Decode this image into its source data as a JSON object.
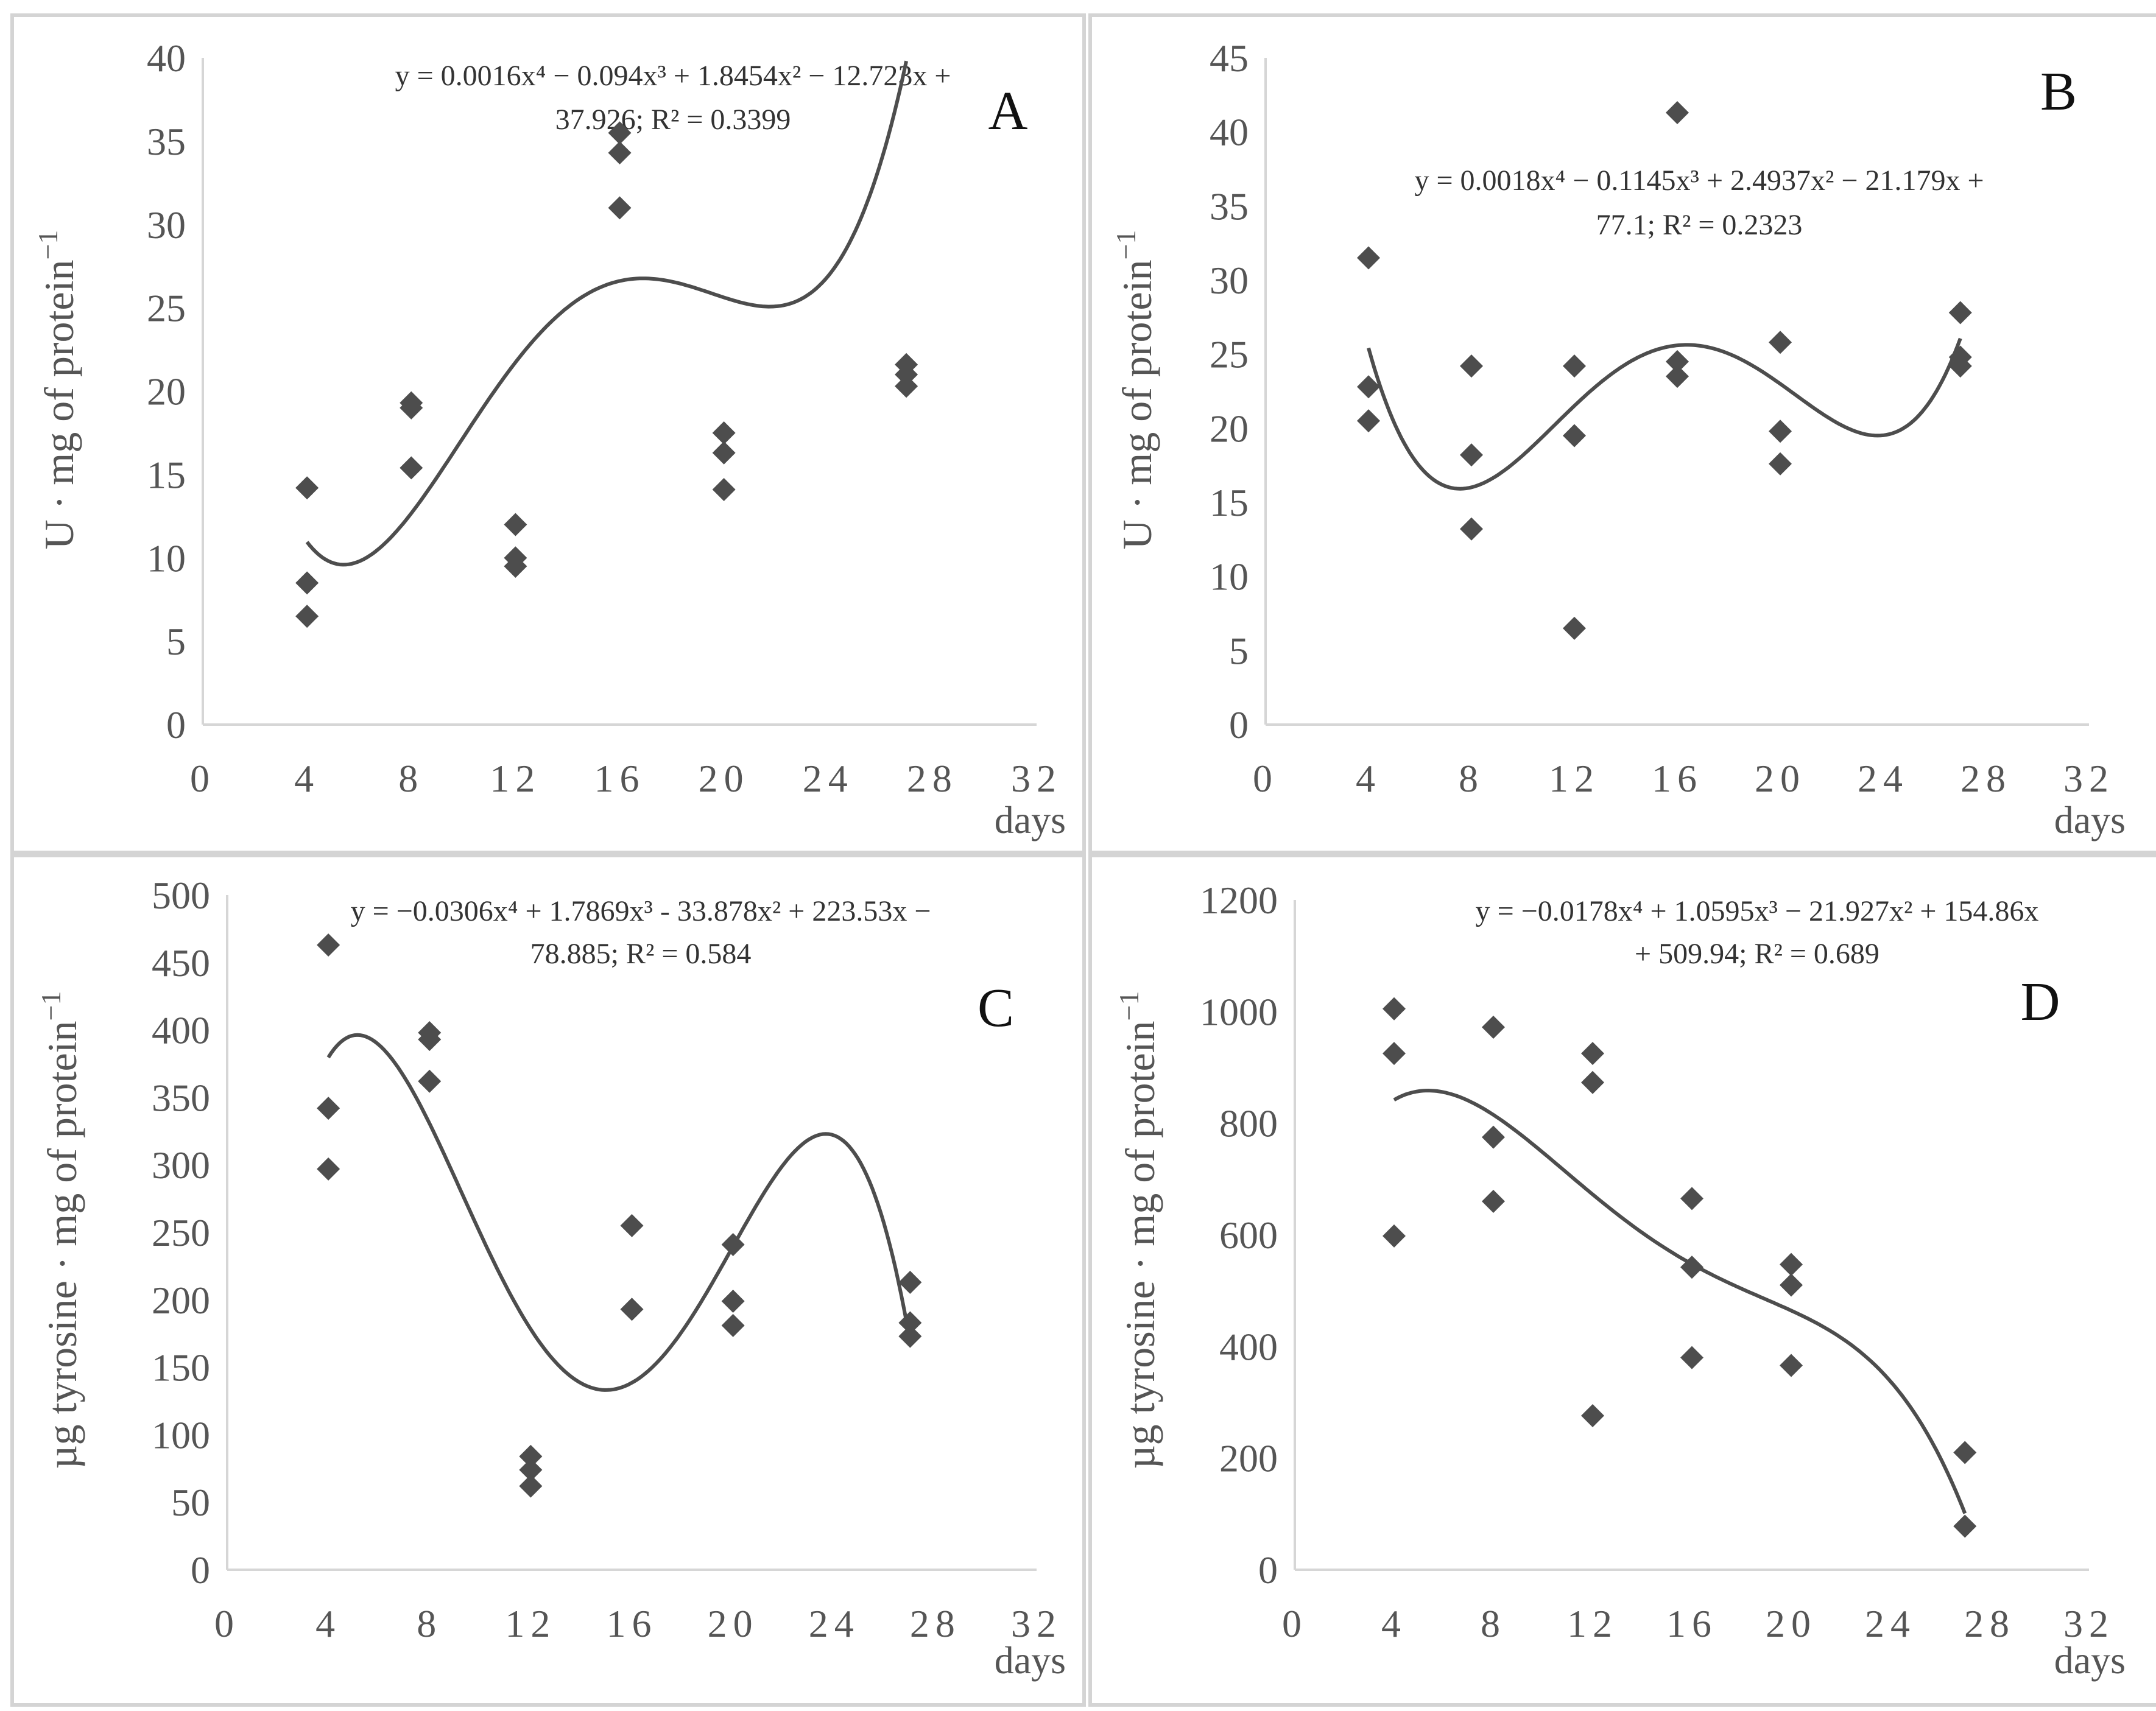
{
  "chart_data": [
    {
      "id": "A",
      "type": "scatter",
      "panel_label": "A",
      "ylabel": "U · mg of protein",
      "ylabel_sup": "−1",
      "xlabel": "days",
      "xlim": [
        0,
        32
      ],
      "ylim": [
        0,
        40
      ],
      "xticks": [
        "0",
        "4",
        "8",
        "12",
        "16",
        "20",
        "24",
        "28",
        "32"
      ],
      "yticks": [
        "0",
        "5",
        "10",
        "15",
        "20",
        "25",
        "30",
        "35",
        "40"
      ],
      "equation_line1": "y = 0.0016x⁴ − 0.094x³ + 1.8454x² − 12.723x +",
      "equation_line2": "37.926; R² = 0.3399",
      "coeffs": [
        37.926,
        -12.723,
        1.8454,
        -0.094,
        0.0016
      ],
      "trend_range": [
        4,
        27
      ],
      "points": [
        [
          4,
          14.2
        ],
        [
          4,
          8.5
        ],
        [
          4,
          6.5
        ],
        [
          8,
          19.3
        ],
        [
          8,
          19.0
        ],
        [
          8,
          15.4
        ],
        [
          12,
          12.0
        ],
        [
          12,
          10.0
        ],
        [
          12,
          9.5
        ],
        [
          16,
          35.5
        ],
        [
          16,
          34.3
        ],
        [
          16,
          31.0
        ],
        [
          20,
          17.5
        ],
        [
          20,
          16.3
        ],
        [
          20,
          14.1
        ],
        [
          27,
          21.6
        ],
        [
          27,
          21.0
        ],
        [
          27,
          20.3
        ]
      ]
    },
    {
      "id": "B",
      "type": "scatter",
      "panel_label": "B",
      "ylabel": "U · mg of protein",
      "ylabel_sup": "−1",
      "xlabel": "days",
      "xlim": [
        0,
        32
      ],
      "ylim": [
        0,
        45
      ],
      "xticks": [
        "0",
        "4",
        "8",
        "12",
        "16",
        "20",
        "24",
        "28",
        "32"
      ],
      "yticks": [
        "0",
        "5",
        "10",
        "15",
        "20",
        "25",
        "30",
        "35",
        "40",
        "45"
      ],
      "equation_line1": "y = 0.0018x⁴ − 0.1145x³ + 2.4937x² − 21.179x +",
      "equation_line2": "77.1; R² = 0.2323",
      "coeffs": [
        77.1,
        -21.179,
        2.4937,
        -0.1145,
        0.0018
      ],
      "trend_range": [
        4,
        27
      ],
      "points": [
        [
          4,
          31.5
        ],
        [
          4,
          22.8
        ],
        [
          4,
          20.5
        ],
        [
          8,
          24.2
        ],
        [
          8,
          18.2
        ],
        [
          8,
          13.2
        ],
        [
          12,
          24.2
        ],
        [
          12,
          19.5
        ],
        [
          12,
          6.5
        ],
        [
          16,
          41.3
        ],
        [
          16,
          24.5
        ],
        [
          16,
          23.5
        ],
        [
          20,
          25.8
        ],
        [
          20,
          19.8
        ],
        [
          20,
          17.6
        ],
        [
          27,
          27.8
        ],
        [
          27,
          24.8
        ],
        [
          27,
          24.2
        ]
      ]
    },
    {
      "id": "C",
      "type": "scatter",
      "panel_label": "C",
      "ylabel": "µg tyrosine · mg of protein",
      "ylabel_sup": "−1",
      "xlabel": "days",
      "xlim": [
        0,
        32
      ],
      "ylim": [
        0,
        500
      ],
      "xticks": [
        "0",
        "4",
        "8",
        "12",
        "16",
        "20",
        "24",
        "28",
        "32"
      ],
      "yticks": [
        "0",
        "50",
        "100",
        "150",
        "200",
        "250",
        "300",
        "350",
        "400",
        "450",
        "500"
      ],
      "equation_line1": "y = −0.0306x⁴ + 1.7869x³ - 33.878x² + 223.53x −",
      "equation_line2": "78.885; R² = 0.584",
      "coeffs": [
        -78.885,
        223.53,
        -33.878,
        1.7869,
        -0.0306
      ],
      "trend_range": [
        4,
        27
      ],
      "points": [
        [
          4,
          463
        ],
        [
          4,
          342
        ],
        [
          4,
          297
        ],
        [
          8,
          398
        ],
        [
          8,
          393
        ],
        [
          8,
          362
        ],
        [
          12,
          84
        ],
        [
          12,
          74
        ],
        [
          12,
          62
        ],
        [
          16,
          255
        ],
        [
          16,
          193
        ],
        [
          20,
          241
        ],
        [
          20,
          199
        ],
        [
          20,
          181
        ],
        [
          27,
          213
        ],
        [
          27,
          183
        ],
        [
          27,
          173
        ]
      ]
    },
    {
      "id": "D",
      "type": "scatter",
      "panel_label": "D",
      "ylabel": "µg tyrosine · mg of protein",
      "ylabel_sup": "−1",
      "xlabel": "days",
      "xlim": [
        0,
        32
      ],
      "ylim": [
        0,
        1200
      ],
      "xticks": [
        "0",
        "4",
        "8",
        "12",
        "16",
        "20",
        "24",
        "28",
        "32"
      ],
      "yticks": [
        "0",
        "200",
        "400",
        "600",
        "800",
        "1000",
        "1200"
      ],
      "equation_line1": "y = −0.0178x⁴ + 1.0595x³ − 21.927x² + 154.86x",
      "equation_line2": "+ 509.94; R² = 0.689",
      "coeffs": [
        509.94,
        154.86,
        -21.927,
        1.0595,
        -0.0178
      ],
      "trend_range": [
        4,
        27
      ],
      "points": [
        [
          4,
          1005
        ],
        [
          4,
          925
        ],
        [
          4,
          598
        ],
        [
          8,
          972
        ],
        [
          8,
          775
        ],
        [
          8,
          660
        ],
        [
          12,
          925
        ],
        [
          12,
          873
        ],
        [
          12,
          276
        ],
        [
          16,
          665
        ],
        [
          16,
          542
        ],
        [
          16,
          380
        ],
        [
          20,
          547
        ],
        [
          20,
          510
        ],
        [
          20,
          366
        ],
        [
          27,
          210
        ],
        [
          27,
          78
        ]
      ]
    }
  ]
}
